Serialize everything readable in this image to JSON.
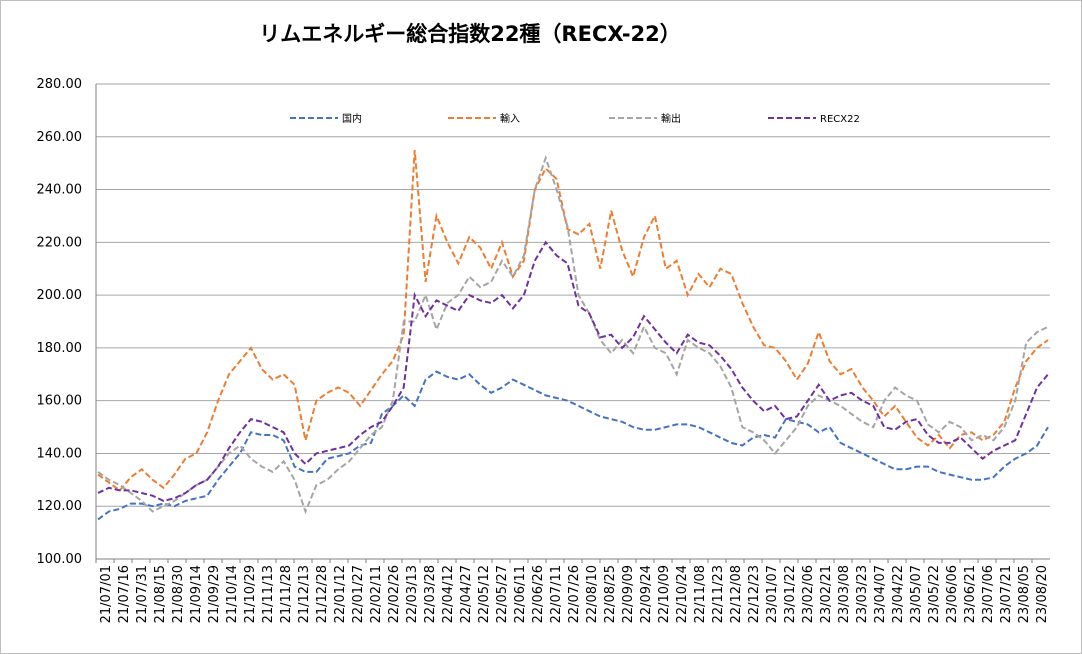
{
  "chart_data": {
    "type": "line",
    "title": "リムエネルギー総合指数22種（RECX-22）",
    "xlabel": "",
    "ylabel": "",
    "ylim": [
      100,
      280
    ],
    "y_ticks": [
      "100.00",
      "120.00",
      "140.00",
      "160.00",
      "180.00",
      "200.00",
      "220.00",
      "240.00",
      "260.00",
      "280.00"
    ],
    "grid": true,
    "legend_position": "top",
    "x_tick_labels": [
      "21/07/01",
      "21/07/16",
      "21/07/31",
      "21/08/15",
      "21/08/30",
      "21/09/14",
      "21/09/29",
      "21/10/14",
      "21/10/29",
      "21/11/13",
      "21/11/28",
      "21/12/13",
      "21/12/28",
      "22/01/12",
      "22/01/27",
      "22/02/11",
      "22/02/26",
      "22/03/13",
      "22/03/28",
      "22/04/12",
      "22/04/27",
      "22/05/12",
      "22/05/27",
      "22/06/11",
      "22/06/26",
      "22/07/11",
      "22/07/26",
      "22/08/10",
      "22/08/25",
      "22/09/09",
      "22/09/24",
      "22/10/09",
      "22/10/24",
      "22/11/08",
      "22/11/23",
      "22/12/08",
      "22/12/23",
      "23/01/07",
      "23/01/22",
      "23/02/06",
      "23/02/21",
      "23/03/08",
      "23/03/23",
      "23/04/07",
      "23/04/22",
      "23/05/07",
      "23/05/22",
      "23/06/06",
      "23/06/21",
      "23/07/06",
      "23/07/21",
      "23/08/05",
      "23/08/20"
    ],
    "series": [
      {
        "name": "国内",
        "color": "#4472c4",
        "values": [
          115,
          118,
          119,
          121,
          121,
          120,
          121,
          120,
          122,
          123,
          124,
          130,
          135,
          140,
          148,
          147,
          147,
          145,
          135,
          133,
          133,
          138,
          139,
          140,
          143,
          144,
          155,
          158,
          162,
          158,
          168,
          171,
          169,
          168,
          170,
          166,
          163,
          165,
          168,
          166,
          164,
          162,
          161,
          160,
          158,
          156,
          154,
          153,
          152,
          150,
          149,
          149,
          150,
          151,
          151,
          150,
          148,
          146,
          144,
          143,
          146,
          147,
          146,
          153,
          152,
          151,
          148,
          150,
          144,
          142,
          140,
          138,
          136,
          134,
          134,
          135,
          135,
          133,
          132,
          131,
          130,
          130,
          131,
          135,
          138,
          140,
          143,
          150
        ]
      },
      {
        "name": "輸入",
        "color": "#ed7d31",
        "values": [
          132,
          129,
          126,
          131,
          134,
          130,
          127,
          132,
          138,
          140,
          148,
          160,
          170,
          175,
          180,
          172,
          168,
          170,
          166,
          145,
          160,
          163,
          165,
          163,
          158,
          164,
          170,
          175,
          185,
          255,
          205,
          230,
          220,
          212,
          222,
          218,
          210,
          220,
          207,
          213,
          240,
          248,
          244,
          225,
          223,
          227,
          210,
          232,
          217,
          207,
          222,
          230,
          210,
          213,
          200,
          208,
          203,
          210,
          208,
          197,
          188,
          181,
          180,
          175,
          168,
          174,
          186,
          175,
          170,
          172,
          165,
          160,
          154,
          158,
          152,
          146,
          143,
          147,
          142,
          147,
          148,
          145,
          147,
          152,
          165,
          175,
          180,
          183
        ]
      },
      {
        "name": "輸出",
        "color": "#a5a5a5",
        "values": [
          133,
          130,
          128,
          125,
          122,
          118,
          120,
          122,
          125,
          128,
          130,
          135,
          140,
          143,
          138,
          135,
          133,
          137,
          130,
          118,
          128,
          130,
          134,
          137,
          142,
          147,
          150,
          160,
          190,
          190,
          200,
          187,
          197,
          200,
          207,
          203,
          205,
          213,
          207,
          215,
          240,
          252,
          240,
          226,
          200,
          193,
          183,
          178,
          183,
          178,
          188,
          180,
          178,
          170,
          183,
          180,
          178,
          173,
          165,
          150,
          148,
          145,
          140,
          145,
          150,
          158,
          162,
          160,
          158,
          155,
          152,
          150,
          160,
          165,
          162,
          160,
          151,
          148,
          152,
          150,
          145,
          147,
          145,
          150,
          160,
          182,
          186,
          188
        ]
      },
      {
        "name": "RECX22",
        "color": "#7030a0",
        "values": [
          125,
          127,
          126,
          126,
          125,
          124,
          122,
          123,
          125,
          128,
          130,
          135,
          142,
          148,
          153,
          152,
          150,
          148,
          140,
          136,
          140,
          141,
          142,
          143,
          147,
          150,
          152,
          158,
          165,
          200,
          192,
          198,
          196,
          194,
          200,
          198,
          197,
          200,
          195,
          200,
          213,
          220,
          215,
          212,
          196,
          193,
          184,
          185,
          180,
          184,
          192,
          187,
          182,
          178,
          185,
          182,
          181,
          177,
          172,
          165,
          160,
          156,
          158,
          153,
          154,
          160,
          166,
          160,
          162,
          163,
          160,
          158,
          150,
          149,
          152,
          153,
          147,
          144,
          144,
          146,
          142,
          138,
          141,
          143,
          145,
          155,
          165,
          170
        ]
      }
    ]
  }
}
